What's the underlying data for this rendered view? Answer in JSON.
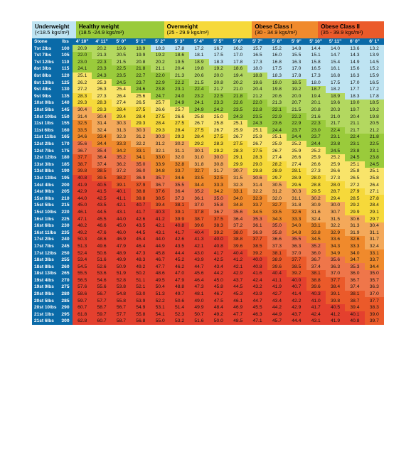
{
  "categories": [
    {
      "label": "Underweight",
      "sub": "(<18.5 kgs/m²)",
      "color": "#bfe4f2",
      "span": 2
    },
    {
      "label": "Healthy weight",
      "sub": "(18.5 -24.9 kgs/m²)",
      "color": "#9acb3b",
      "span": 4
    },
    {
      "label": "Overweight",
      "sub": "(25 - 29.9 kgs/m²)",
      "color": "#f6d93a",
      "span": 4
    },
    {
      "label": "Obese Class I",
      "sub": "(30 - 34.9 kgs/m²)",
      "color": "#f08a2c",
      "span": 3
    },
    {
      "label": "Obese Class II",
      "sub": "(35 - 39.9 kgs/m²)",
      "color": "#eb5a2a",
      "span": 3
    }
  ],
  "colors": {
    "header": "#0a6aa8",
    "under": "#bfe4f2",
    "healthy": "#9acb3b",
    "healthy2": "#b3d860",
    "over": "#f9e46a",
    "over2": "#f6d93a",
    "ob1": "#f4a95a",
    "ob1b": "#f08a2c",
    "ob2": "#ef764a",
    "ob2b": "#eb5a2a",
    "ob3": "#e4402e"
  },
  "thresholds": {
    "healthy": 18.5,
    "over": 25,
    "ob1": 30,
    "ob2": 35,
    "ob3": 40
  },
  "heights": [
    "4' 10\"",
    "4' 11\"",
    "5' 0\"",
    "5' 1\"",
    "5' 2\"",
    "5' 3\"",
    "5' 4\"",
    "5' 5\"",
    "5' 6\"",
    "5' 7\"",
    "5' 8\"",
    "5' 9\"",
    "5' 10\"",
    "5' 11\"",
    "6' 0\"",
    "6' 1\""
  ],
  "col_labels": [
    "Stone",
    "lbs"
  ],
  "rows": [
    {
      "stone": "7st 2lbs",
      "lbs": 100,
      "v": [
        20.9,
        20.2,
        19.6,
        18.9,
        18.3,
        17.8,
        17.2,
        16.7,
        16.2,
        15.7,
        15.2,
        14.8,
        14.4,
        14.0,
        13.6,
        13.2
      ]
    },
    {
      "stone": "7st 7lbs",
      "lbs": 105,
      "v": [
        22.0,
        21.3,
        20.5,
        19.9,
        19.2,
        18.6,
        18.1,
        17.5,
        17.0,
        16.5,
        16.0,
        15.5,
        15.1,
        14.7,
        14.3,
        13.9
      ]
    },
    {
      "stone": "7st 12lbs",
      "lbs": 110,
      "v": [
        23.0,
        22.3,
        21.5,
        20.8,
        20.2,
        19.5,
        18.9,
        18.3,
        17.8,
        17.3,
        16.8,
        16.3,
        15.8,
        15.4,
        14.9,
        14.5
      ]
    },
    {
      "stone": "8st 3lbs",
      "lbs": 115,
      "v": [
        24.1,
        23.3,
        22.5,
        21.8,
        21.1,
        20.4,
        19.8,
        19.2,
        18.6,
        18.0,
        17.5,
        17.0,
        16.5,
        16.1,
        15.6,
        15.2
      ]
    },
    {
      "stone": "8st 8lbs",
      "lbs": 120,
      "v": [
        25.1,
        24.3,
        23.5,
        22.7,
        22.0,
        21.3,
        20.6,
        20.0,
        19.4,
        18.8,
        18.3,
        17.8,
        17.3,
        16.8,
        16.3,
        15.9
      ]
    },
    {
      "stone": "8st 13lbs",
      "lbs": 125,
      "v": [
        26.2,
        25.3,
        24.5,
        23.7,
        22.9,
        22.2,
        21.5,
        20.8,
        20.2,
        19.6,
        19.0,
        18.5,
        18.0,
        17.5,
        17.0,
        16.5
      ]
    },
    {
      "stone": "9st 4lbs",
      "lbs": 130,
      "v": [
        27.2,
        26.3,
        25.4,
        24.6,
        23.8,
        23.1,
        22.4,
        21.7,
        21.0,
        20.4,
        19.8,
        19.2,
        18.7,
        18.2,
        17.7,
        17.2
      ]
    },
    {
      "stone": "9st 9lbs",
      "lbs": 135,
      "v": [
        28.3,
        27.3,
        26.4,
        25.6,
        24.7,
        24.0,
        23.2,
        22.5,
        21.8,
        21.2,
        20.6,
        20.0,
        19.4,
        18.9,
        18.3,
        17.8
      ]
    },
    {
      "stone": "10st 0lbs",
      "lbs": 140,
      "v": [
        29.3,
        28.3,
        27.4,
        26.5,
        25.7,
        24.9,
        24.1,
        23.3,
        22.6,
        22.0,
        21.3,
        20.7,
        20.1,
        19.6,
        19.0,
        18.5
      ]
    },
    {
      "stone": "10st 5lbs",
      "lbs": 145,
      "v": [
        30.4,
        29.3,
        28.4,
        27.5,
        26.6,
        25.7,
        24.9,
        24.2,
        23.5,
        22.8,
        22.1,
        21.5,
        20.8,
        20.3,
        19.7,
        19.2
      ]
    },
    {
      "stone": "10st 10lbs",
      "lbs": 150,
      "v": [
        31.4,
        30.4,
        29.4,
        28.4,
        27.5,
        26.6,
        25.8,
        25.0,
        24.3,
        23.5,
        22.9,
        22.2,
        21.6,
        21.0,
        20.4,
        19.8
      ]
    },
    {
      "stone": "11st 1lbs",
      "lbs": 155,
      "v": [
        32.5,
        31.4,
        30.3,
        29.3,
        28.4,
        27.5,
        26.7,
        25.8,
        25.1,
        24.3,
        23.6,
        22.9,
        22.3,
        21.7,
        21.1,
        20.5
      ]
    },
    {
      "stone": "11st 6lbs",
      "lbs": 160,
      "v": [
        33.5,
        32.4,
        31.3,
        30.3,
        29.3,
        28.4,
        27.5,
        26.7,
        25.9,
        25.1,
        24.4,
        23.7,
        23.0,
        22.4,
        21.7,
        21.2
      ]
    },
    {
      "stone": "11st 11lbs",
      "lbs": 165,
      "v": [
        34.6,
        33.4,
        32.3,
        31.2,
        30.3,
        29.3,
        28.4,
        27.5,
        26.7,
        25.9,
        25.1,
        24.4,
        23.7,
        23.1,
        22.4,
        21.8
      ]
    },
    {
      "stone": "12st 2lbs",
      "lbs": 170,
      "v": [
        35.6,
        34.4,
        33.3,
        32.2,
        31.2,
        30.2,
        29.2,
        28.3,
        27.5,
        26.7,
        25.9,
        25.2,
        24.4,
        23.8,
        23.1,
        22.5
      ]
    },
    {
      "stone": "12st 7lbs",
      "lbs": 175,
      "v": [
        36.7,
        35.4,
        34.2,
        33.1,
        32.1,
        31.1,
        30.1,
        29.2,
        28.3,
        27.5,
        26.7,
        25.9,
        25.2,
        24.5,
        23.8,
        23.1
      ]
    },
    {
      "stone": "12st 12lbs",
      "lbs": 180,
      "v": [
        37.7,
        36.4,
        35.2,
        34.1,
        33.0,
        32.0,
        31.0,
        30.0,
        29.1,
        28.3,
        27.4,
        26.6,
        25.9,
        25.2,
        24.5,
        23.8
      ]
    },
    {
      "stone": "13st 3lbs",
      "lbs": 185,
      "v": [
        38.7,
        37.4,
        36.2,
        35.0,
        33.9,
        32.8,
        31.8,
        30.8,
        29.9,
        29.0,
        28.2,
        27.4,
        26.6,
        25.9,
        25.1,
        24.5
      ]
    },
    {
      "stone": "13st 8lbs",
      "lbs": 190,
      "v": [
        39.8,
        38.5,
        37.2,
        36.0,
        34.8,
        33.7,
        32.7,
        31.7,
        30.7,
        29.8,
        28.9,
        28.1,
        27.3,
        26.6,
        25.8,
        25.1
      ]
    },
    {
      "stone": "13st 13lbs",
      "lbs": 195,
      "v": [
        40.8,
        39.5,
        38.2,
        36.9,
        35.7,
        34.6,
        33.5,
        32.5,
        31.5,
        30.6,
        29.7,
        28.9,
        28.0,
        27.3,
        26.5,
        25.8
      ]
    },
    {
      "stone": "14st 4lbs",
      "lbs": 200,
      "v": [
        41.9,
        40.5,
        39.1,
        37.9,
        36.7,
        35.5,
        34.4,
        33.3,
        32.3,
        31.4,
        30.5,
        29.6,
        28.8,
        28.0,
        27.2,
        26.4
      ]
    },
    {
      "stone": "14st 9lbs",
      "lbs": 205,
      "v": [
        42.9,
        41.5,
        40.1,
        38.8,
        37.6,
        36.4,
        35.2,
        34.2,
        33.1,
        32.2,
        31.2,
        30.3,
        29.5,
        28.7,
        27.9,
        27.1
      ]
    },
    {
      "stone": "15st 0lbs",
      "lbs": 210,
      "v": [
        44.0,
        42.5,
        41.1,
        39.8,
        38.5,
        37.3,
        36.1,
        35.0,
        34.0,
        32.9,
        32.0,
        31.1,
        30.2,
        29.4,
        28.5,
        27.8
      ]
    },
    {
      "stone": "15st 5lbs",
      "lbs": 215,
      "v": [
        45.0,
        43.5,
        42.1,
        40.7,
        39.4,
        38.1,
        37.0,
        35.8,
        34.8,
        33.7,
        32.7,
        31.8,
        30.9,
        30.0,
        29.2,
        28.4
      ]
    },
    {
      "stone": "15st 10lbs",
      "lbs": 220,
      "v": [
        46.1,
        44.5,
        43.1,
        41.7,
        40.3,
        39.1,
        37.8,
        36.7,
        35.6,
        34.5,
        33.5,
        32.6,
        31.6,
        30.7,
        29.9,
        29.1
      ]
    },
    {
      "stone": "16st 1lbs",
      "lbs": 225,
      "v": [
        47.1,
        45.5,
        44.0,
        42.6,
        41.2,
        39.9,
        38.7,
        37.5,
        36.4,
        35.3,
        34.3,
        33.3,
        32.4,
        31.5,
        30.6,
        29.7
      ]
    },
    {
      "stone": "16st 6lbs",
      "lbs": 230,
      "v": [
        48.2,
        46.6,
        45.0,
        43.5,
        42.1,
        40.8,
        39.6,
        38.3,
        37.2,
        36.1,
        35.0,
        34.0,
        33.1,
        32.2,
        31.3,
        30.4
      ]
    },
    {
      "stone": "16st 11lbs",
      "lbs": 235,
      "v": [
        49.2,
        47.6,
        46.0,
        44.5,
        43.1,
        41.7,
        40.4,
        39.2,
        38.0,
        36.9,
        35.8,
        34.8,
        33.8,
        32.9,
        31.9,
        31.1
      ]
    },
    {
      "stone": "17st 2lbs",
      "lbs": 240,
      "v": [
        50.3,
        48.6,
        46.9,
        45.4,
        44.0,
        42.6,
        41.3,
        40.0,
        38.8,
        37.7,
        36.6,
        35.5,
        34.5,
        33.6,
        32.6,
        31.7
      ]
    },
    {
      "stone": "17st 7lbs",
      "lbs": 245,
      "v": [
        51.3,
        49.6,
        47.9,
        46.4,
        44.9,
        43.5,
        42.1,
        40.8,
        39.6,
        38.5,
        37.3,
        36.3,
        35.2,
        34.3,
        33.3,
        32.4
      ]
    },
    {
      "stone": "17st 12lbs",
      "lbs": 250,
      "v": [
        52.4,
        50.6,
        48.9,
        47.3,
        45.8,
        44.4,
        43.0,
        41.7,
        40.4,
        39.2,
        38.1,
        37.0,
        36.0,
        34.9,
        34.0,
        33.1
      ]
    },
    {
      "stone": "18st 3lbs",
      "lbs": 255,
      "v": [
        53.4,
        51.6,
        49.9,
        48.3,
        46.7,
        45.2,
        43.9,
        42.5,
        41.2,
        40.0,
        38.9,
        37.7,
        36.7,
        35.6,
        34.7,
        33.7
      ]
    },
    {
      "stone": "18st 8lbs",
      "lbs": 260,
      "v": [
        54.5,
        52.6,
        50.9,
        49.2,
        47.7,
        46.2,
        44.7,
        43.4,
        42.1,
        40.8,
        39.6,
        38.5,
        37.4,
        36.3,
        35.3,
        34.4
      ]
    },
    {
      "stone": "18st 13lbs",
      "lbs": 265,
      "v": [
        55.5,
        53.6,
        51.9,
        50.2,
        48.6,
        47.0,
        45.6,
        44.2,
        42.9,
        41.6,
        40.4,
        39.2,
        38.1,
        37.0,
        36.0,
        35.0
      ]
    },
    {
      "stone": "19st 4lbs",
      "lbs": 270,
      "v": [
        56.5,
        54.6,
        52.8,
        51.1,
        49.5,
        47.9,
        46.4,
        45.0,
        43.7,
        42.4,
        41.1,
        40.0,
        38.8,
        37.7,
        36.7,
        35.7
      ]
    },
    {
      "stone": "19st 9lbs",
      "lbs": 275,
      "v": [
        57.6,
        55.6,
        53.8,
        52.1,
        50.4,
        48.8,
        47.3,
        45.8,
        44.5,
        43.2,
        41.9,
        40.7,
        39.6,
        38.4,
        37.4,
        36.3
      ]
    },
    {
      "stone": "20st 0lbs",
      "lbs": 280,
      "v": [
        58.6,
        56.7,
        54.8,
        53.0,
        51.3,
        49.7,
        48.1,
        46.7,
        45.3,
        43.9,
        42.7,
        41.4,
        40.3,
        39.1,
        38.1,
        37.0
      ]
    },
    {
      "stone": "20st 5lbs",
      "lbs": 285,
      "v": [
        59.7,
        57.7,
        55.8,
        53.9,
        52.2,
        50.6,
        49.0,
        47.5,
        46.1,
        44.7,
        43.4,
        42.2,
        41.0,
        39.8,
        38.7,
        37.7
      ]
    },
    {
      "stone": "20st 10lbs",
      "lbs": 290,
      "v": [
        60.7,
        58.7,
        56.7,
        54.9,
        53.1,
        51.4,
        49.9,
        48.4,
        46.9,
        45.5,
        44.2,
        42.9,
        41.7,
        40.5,
        39.4,
        38.3
      ]
    },
    {
      "stone": "21st 1lbs",
      "lbs": 295,
      "v": [
        61.8,
        59.7,
        57.7,
        55.8,
        54.1,
        52.3,
        50.7,
        49.2,
        47.7,
        46.3,
        44.9,
        43.7,
        42.4,
        41.2,
        40.1,
        39.0
      ]
    },
    {
      "stone": "21st 6lbs",
      "lbs": 300,
      "v": [
        62.8,
        60.7,
        58.7,
        56.8,
        55.0,
        53.2,
        51.6,
        50.0,
        48.5,
        47.1,
        45.7,
        44.4,
        43.1,
        41.9,
        40.8,
        39.7
      ]
    }
  ]
}
